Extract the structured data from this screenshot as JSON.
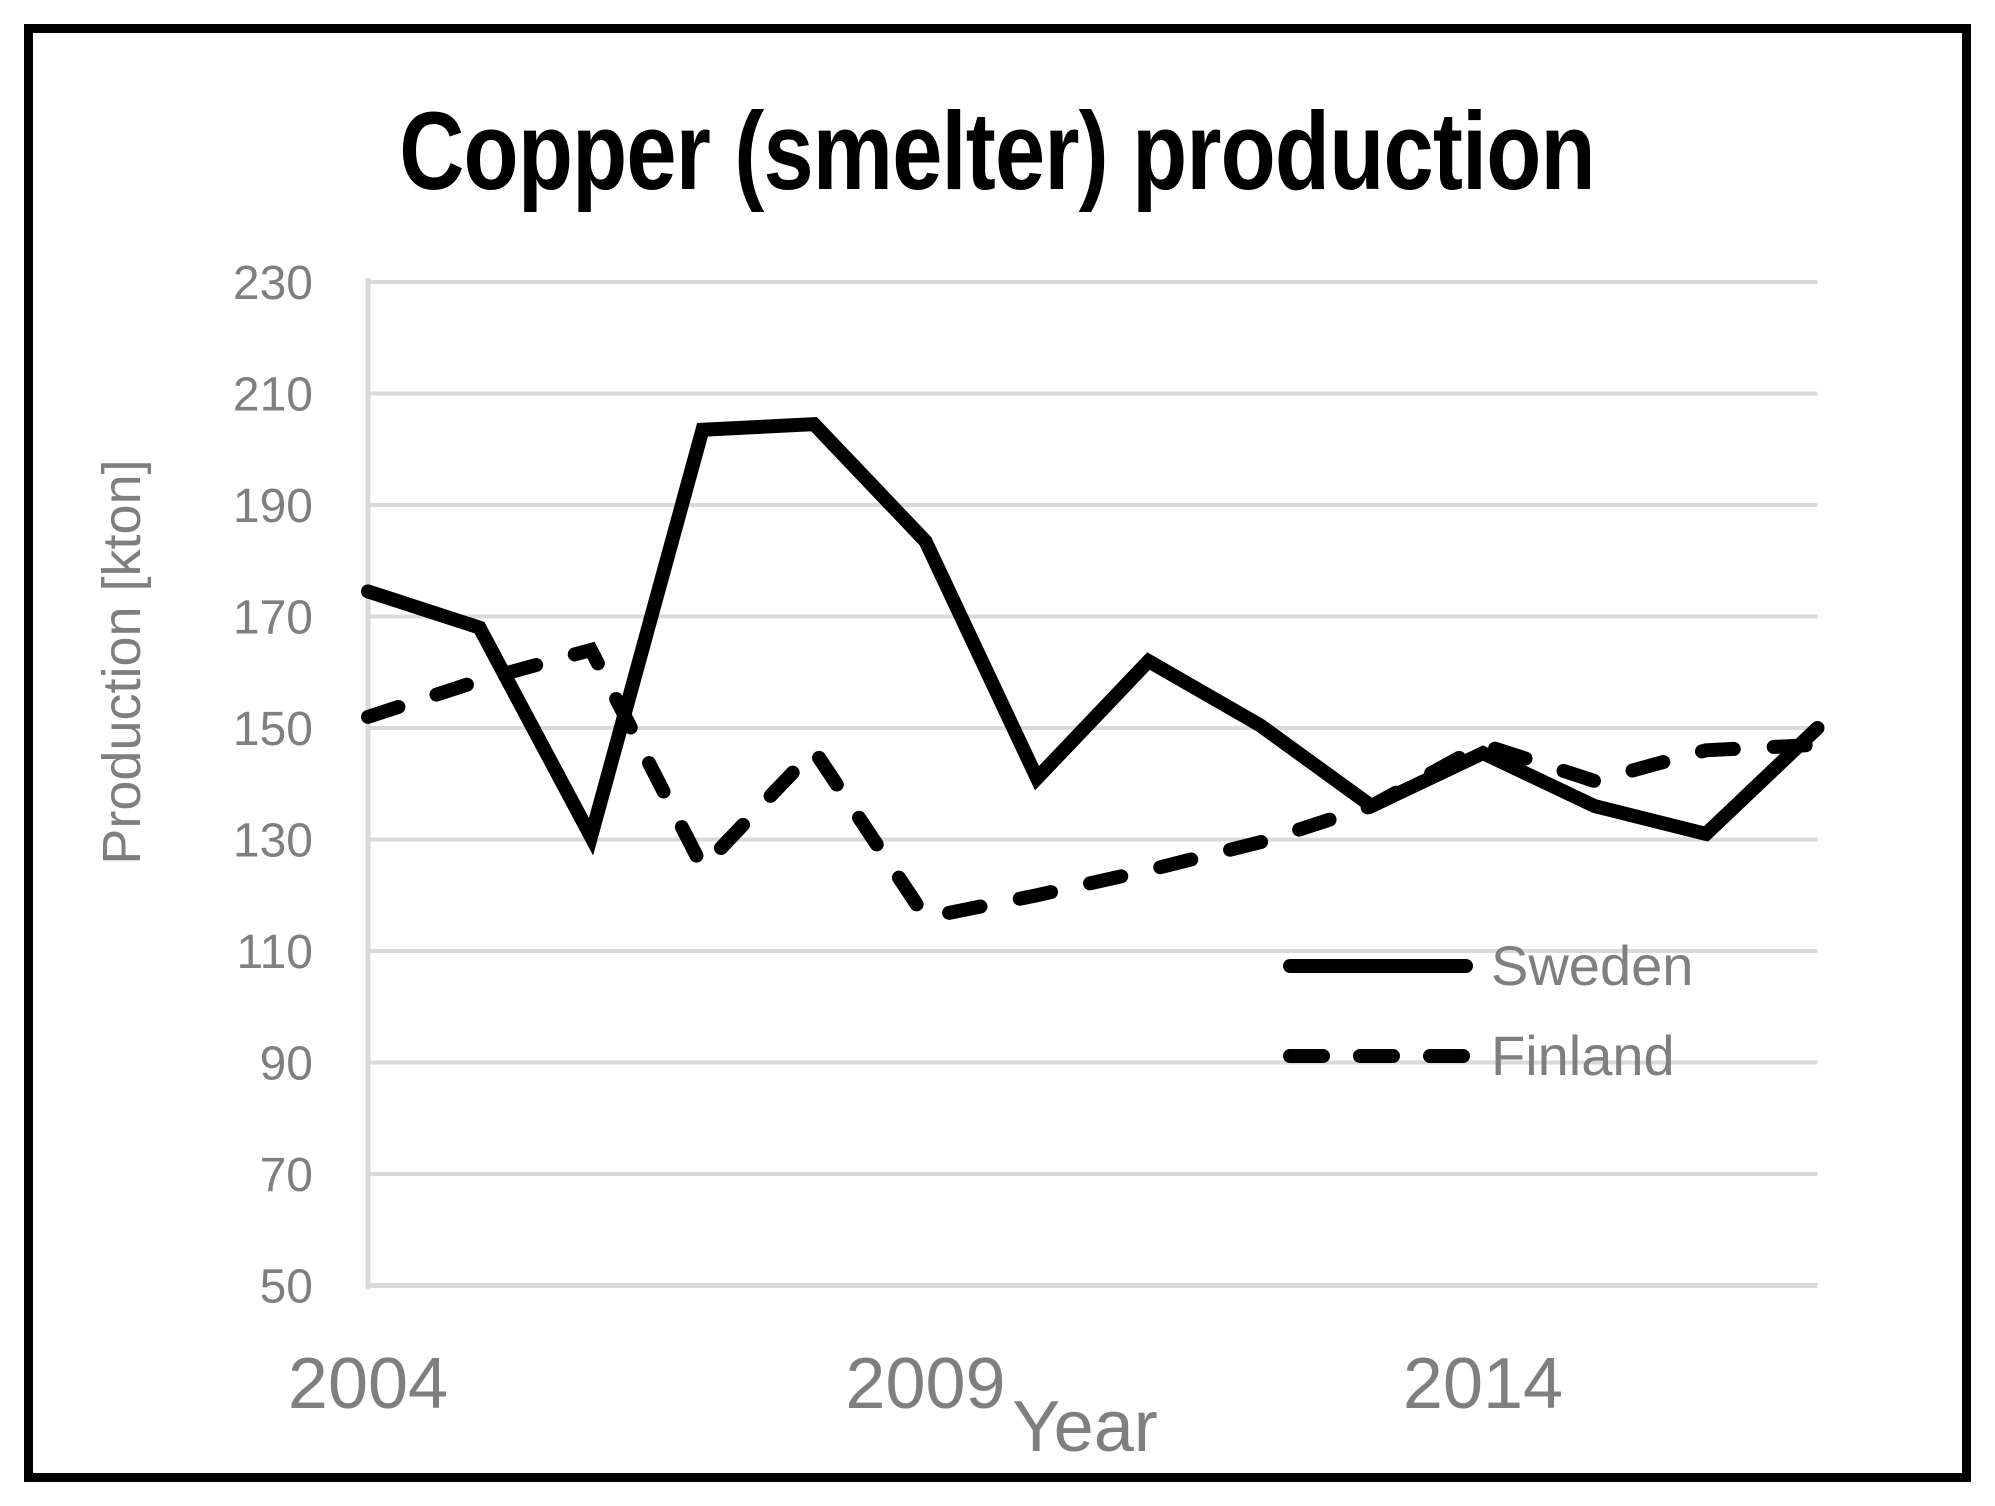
{
  "chart_data": {
    "type": "line",
    "title": "Copper (smelter) production",
    "xlabel": "Year",
    "ylabel": "Production [kton]",
    "x": [
      2004,
      2005,
      2006,
      2007,
      2008,
      2009,
      2010,
      2011,
      2012,
      2013,
      2014,
      2015,
      2016,
      2017
    ],
    "series": [
      {
        "name": "Sweden",
        "style": "solid",
        "color": "#000000",
        "values": [
          174.5,
          168,
          130.5,
          203.5,
          204.5,
          183.5,
          141,
          162,
          150.5,
          136,
          145.5,
          136,
          131,
          150
        ]
      },
      {
        "name": "Finland",
        "style": "dashed",
        "color": "#000000",
        "values": [
          152,
          158.5,
          164,
          125,
          146,
          116,
          120,
          124.5,
          129.5,
          136,
          147,
          140.5,
          146,
          147
        ]
      }
    ],
    "ylim": [
      50,
      230
    ],
    "yticks": [
      50,
      70,
      90,
      110,
      130,
      150,
      170,
      190,
      210,
      230
    ],
    "xticks": [
      2004,
      2009,
      2014
    ],
    "grid": "horizontal",
    "legend_position": "inside-right"
  },
  "colors": {
    "line": "#000000",
    "grid": "#d9d9d9",
    "axis": "#d9d9d9",
    "tick_labels": "#7f7f7f",
    "background": "#ffffff",
    "border": "#000000"
  },
  "legend": {
    "sweden_label": "Sweden",
    "finland_label": "Finland"
  }
}
